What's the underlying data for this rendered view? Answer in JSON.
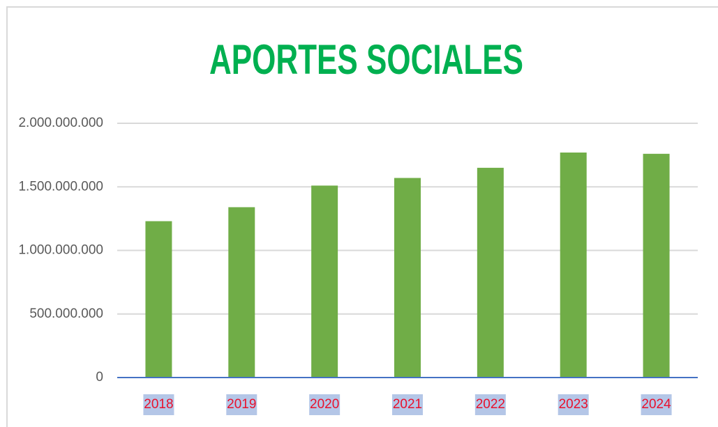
{
  "chart_data": {
    "type": "bar",
    "title": "APORTES SOCIALES",
    "categories": [
      "2018",
      "2019",
      "2020",
      "2021",
      "2022",
      "2023",
      "2024"
    ],
    "values": [
      1230000000,
      1340000000,
      1510000000,
      1570000000,
      1650000000,
      1770000000,
      1760000000
    ],
    "color": "#70ad47",
    "ylim": [
      0,
      2000000000
    ],
    "yticks": [
      0,
      {
        "value": 500000000,
        "label": "500.000.000"
      },
      {
        "value": 1000000000,
        "label": "1.000.000.000"
      },
      {
        "value": 1500000000,
        "label": "1.500.000.000"
      },
      {
        "value": 2000000000,
        "label": "2.000.000.000"
      }
    ],
    "grid": true
  }
}
